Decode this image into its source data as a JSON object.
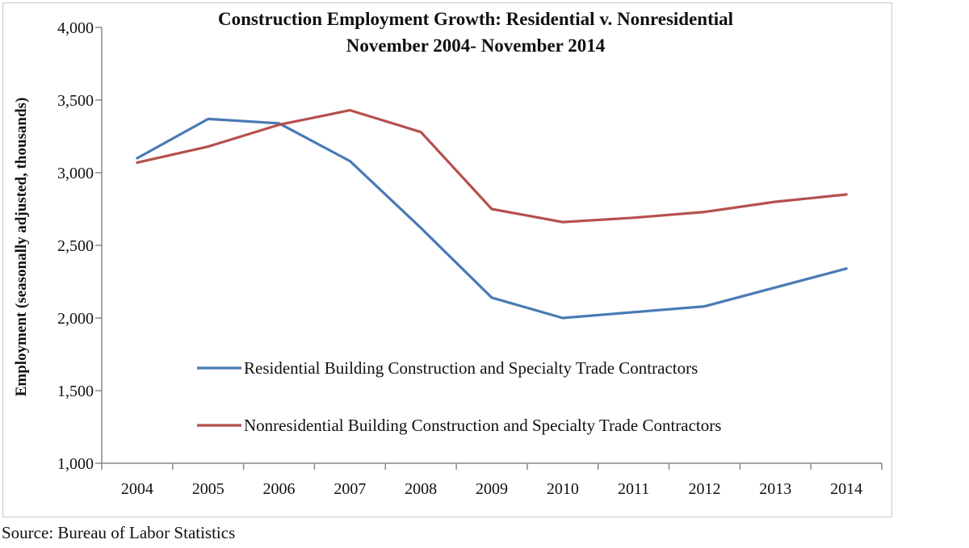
{
  "chart_data": {
    "type": "line",
    "title": "Construction Employment Growth:  Residential v. Nonresidential",
    "subtitle": "November 2004- November 2014",
    "xlabel": "",
    "ylabel": "Employment (seasonally adjusted, thousands)",
    "categories": [
      "2004",
      "2005",
      "2006",
      "2007",
      "2008",
      "2009",
      "2010",
      "2011",
      "2012",
      "2013",
      "2014"
    ],
    "ylim": [
      1000,
      4000
    ],
    "yticks": [
      1000,
      1500,
      2000,
      2500,
      3000,
      3500,
      4000
    ],
    "ytick_labels": [
      "1,000",
      "1,500",
      "2,000",
      "2,500",
      "3,000",
      "3,500",
      "4,000"
    ],
    "grid": false,
    "legend_placement": "inside-lower-center",
    "series": [
      {
        "name": "Residential Building Construction and Specialty Trade Contractors",
        "color": "#4a7ab5",
        "values": [
          3100,
          3370,
          3340,
          3080,
          2620,
          2140,
          2000,
          2040,
          2080,
          2210,
          2340
        ]
      },
      {
        "name": "Nonresidential Building Construction and Specialty Trade Contractors",
        "color": "#b5504d",
        "values": [
          3070,
          3180,
          3330,
          3430,
          3280,
          2750,
          2660,
          2690,
          2730,
          2800,
          2850
        ]
      }
    ]
  },
  "source": "Source:  Bureau of Labor Statistics"
}
